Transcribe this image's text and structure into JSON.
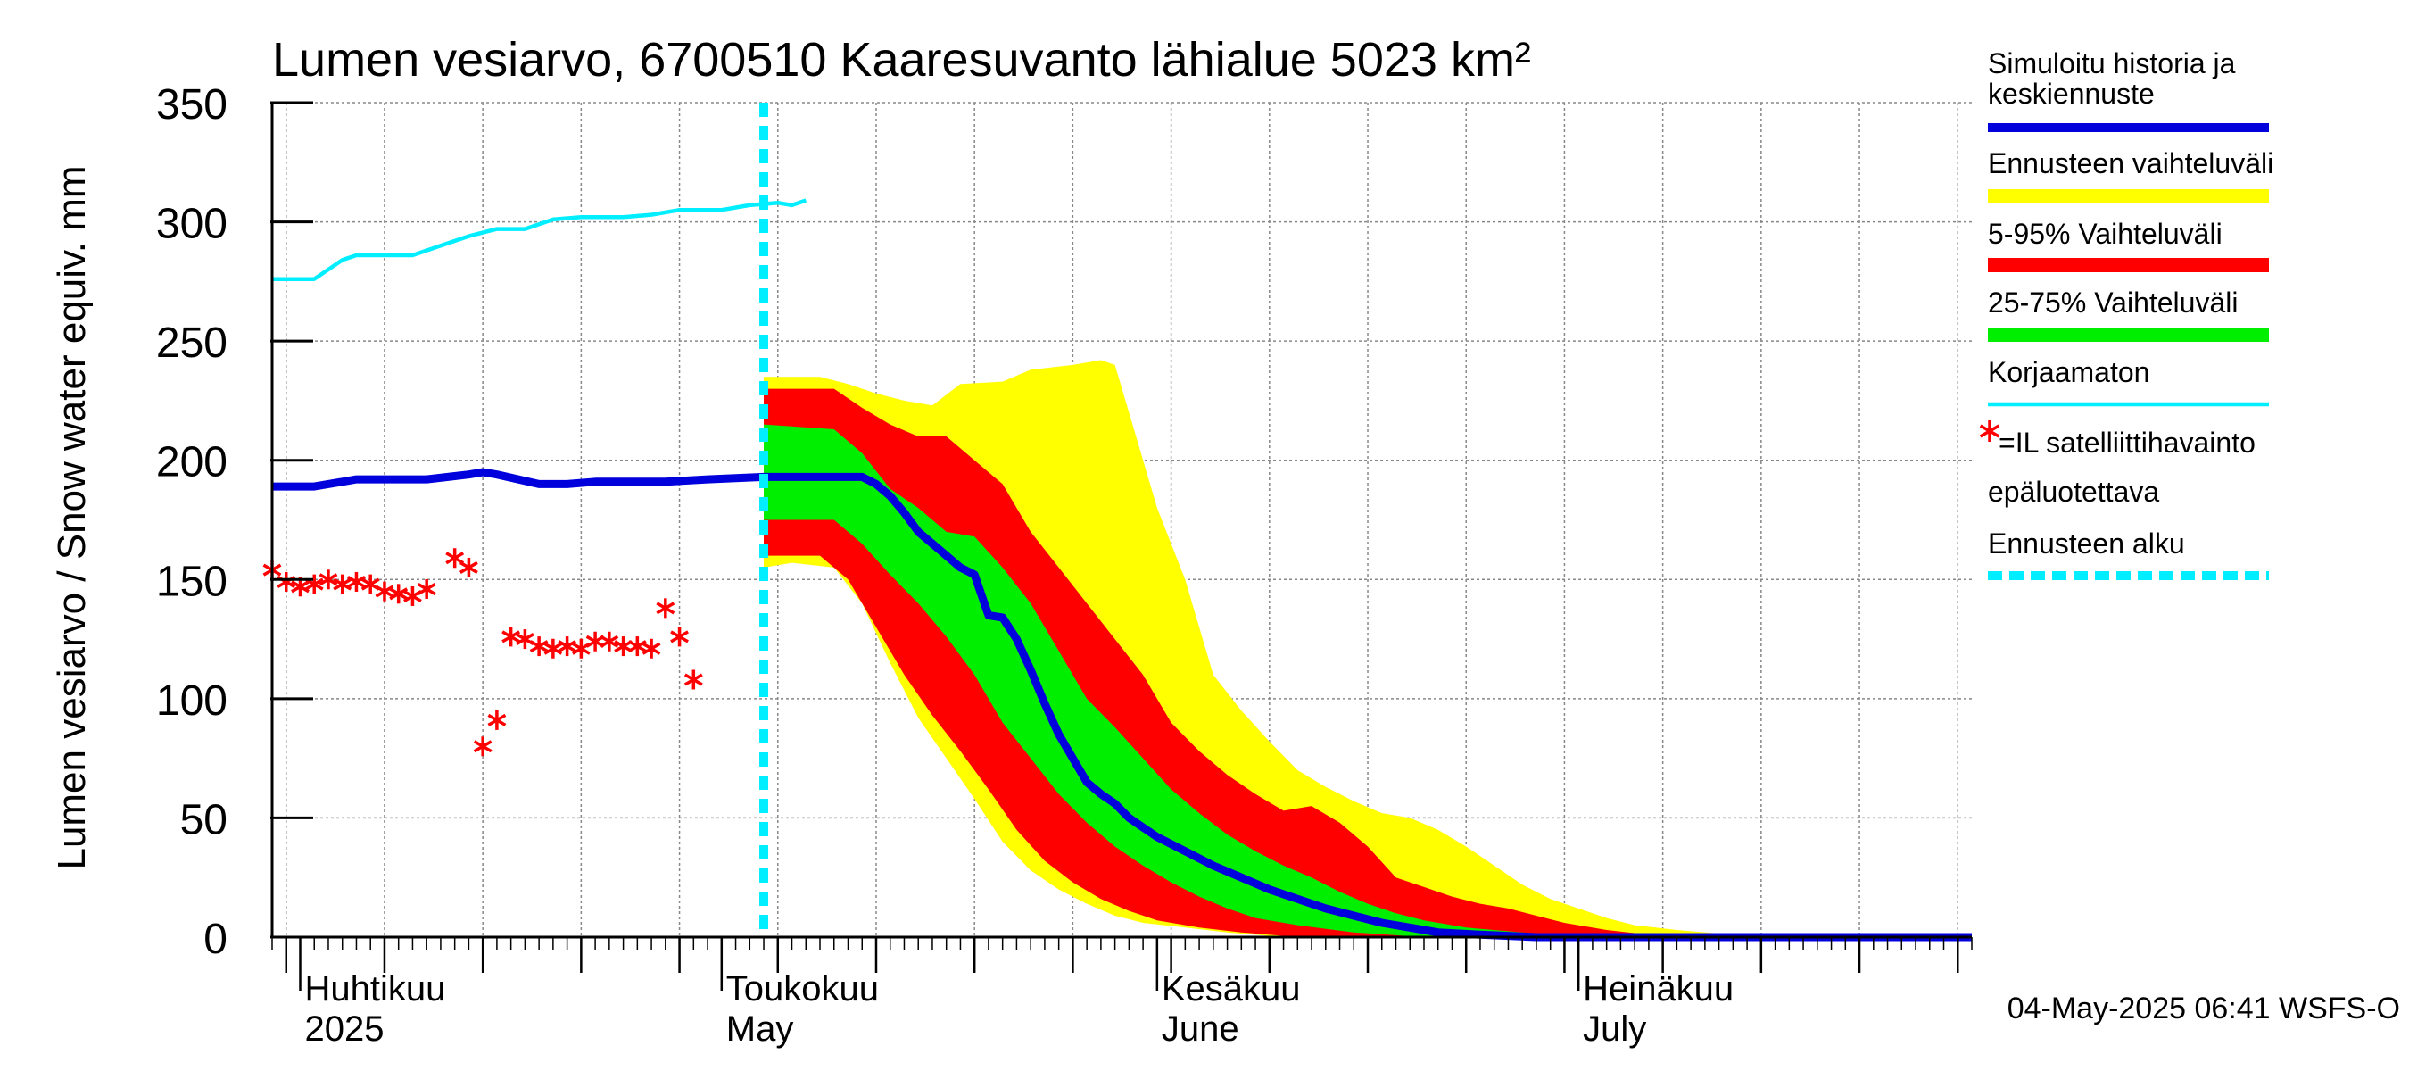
{
  "chart_data": {
    "type": "area",
    "title": "Lumen vesiarvo, 6700510 Kaaresuvanto lähialue 5023 km²",
    "ylabel": "Lumen vesiarvo / Snow water equiv.    mm",
    "ylim": [
      0,
      350
    ],
    "yticks": [
      "0",
      "50",
      "100",
      "150",
      "200",
      "250",
      "300",
      "350"
    ],
    "x_range": [
      "2025-03-30",
      "2025-07-29"
    ],
    "month_labels": [
      {
        "top": "Huhtikuu",
        "bottom": "2025",
        "date": "2025-04-01"
      },
      {
        "top": "Toukokuu",
        "bottom": "May",
        "date": "2025-05-01"
      },
      {
        "top": "Kesäkuu",
        "bottom": "June",
        "date": "2025-06-01"
      },
      {
        "top": "Heinäkuu",
        "bottom": "July",
        "date": "2025-07-01"
      }
    ],
    "forecast_start": "2025-05-04",
    "footer": "04-May-2025 06:41 WSFS-O",
    "grid": true,
    "legend_position": "right",
    "legend": [
      {
        "label": "Simuloitu historia ja keskiennuste",
        "color": "#0000dd",
        "style": "line"
      },
      {
        "label": "Ennusteen vaihteluväli",
        "color": "#ffff00",
        "style": "band"
      },
      {
        "label": "5-95% Vaihteluväli",
        "color": "#ff0000",
        "style": "band"
      },
      {
        "label": "25-75% Vaihteluväli",
        "color": "#00ee00",
        "style": "band"
      },
      {
        "label": "Korjaamaton",
        "color": "#00eeff",
        "style": "line"
      },
      {
        "label": "=IL satelliittihavainto",
        "label2": "epäluotettava",
        "color": "#ff0000",
        "style": "star"
      },
      {
        "label": "Ennusteen alku",
        "color": "#00eeff",
        "style": "dashed"
      }
    ],
    "series": [
      {
        "name": "Simuloitu historia ja keskiennuste",
        "kind": "line",
        "color": "#0000dd",
        "points": [
          [
            "2025-03-30",
            189
          ],
          [
            "2025-04-02",
            189
          ],
          [
            "2025-04-04",
            191
          ],
          [
            "2025-04-05",
            192
          ],
          [
            "2025-04-10",
            192
          ],
          [
            "2025-04-13",
            194
          ],
          [
            "2025-04-14",
            195
          ],
          [
            "2025-04-15",
            194
          ],
          [
            "2025-04-18",
            190
          ],
          [
            "2025-04-20",
            190
          ],
          [
            "2025-04-22",
            191
          ],
          [
            "2025-04-27",
            191
          ],
          [
            "2025-04-30",
            192
          ],
          [
            "2025-05-04",
            193
          ],
          [
            "2025-05-06",
            193
          ],
          [
            "2025-05-11",
            193
          ],
          [
            "2025-05-12",
            190
          ],
          [
            "2025-05-13",
            185
          ],
          [
            "2025-05-14",
            178
          ],
          [
            "2025-05-15",
            170
          ],
          [
            "2025-05-16",
            165
          ],
          [
            "2025-05-17",
            160
          ],
          [
            "2025-05-18",
            155
          ],
          [
            "2025-05-19",
            152
          ],
          [
            "2025-05-20",
            135
          ],
          [
            "2025-05-21",
            134
          ],
          [
            "2025-05-22",
            125
          ],
          [
            "2025-05-23",
            112
          ],
          [
            "2025-05-24",
            98
          ],
          [
            "2025-05-25",
            85
          ],
          [
            "2025-05-26",
            75
          ],
          [
            "2025-05-27",
            65
          ],
          [
            "2025-05-28",
            60
          ],
          [
            "2025-05-29",
            56
          ],
          [
            "2025-05-30",
            50
          ],
          [
            "2025-06-01",
            42
          ],
          [
            "2025-06-03",
            36
          ],
          [
            "2025-06-05",
            30
          ],
          [
            "2025-06-07",
            25
          ],
          [
            "2025-06-09",
            20
          ],
          [
            "2025-06-11",
            16
          ],
          [
            "2025-06-13",
            12
          ],
          [
            "2025-06-15",
            9
          ],
          [
            "2025-06-17",
            6
          ],
          [
            "2025-06-19",
            4
          ],
          [
            "2025-06-21",
            2
          ],
          [
            "2025-06-24",
            1
          ],
          [
            "2025-06-28",
            0
          ],
          [
            "2025-07-29",
            0
          ]
        ]
      },
      {
        "name": "Korjaamaton",
        "kind": "line",
        "color": "#00eeff",
        "points": [
          [
            "2025-03-30",
            276
          ],
          [
            "2025-04-02",
            276
          ],
          [
            "2025-04-04",
            284
          ],
          [
            "2025-04-05",
            286
          ],
          [
            "2025-04-07",
            286
          ],
          [
            "2025-04-09",
            286
          ],
          [
            "2025-04-11",
            290
          ],
          [
            "2025-04-13",
            294
          ],
          [
            "2025-04-15",
            297
          ],
          [
            "2025-04-17",
            297
          ],
          [
            "2025-04-19",
            301
          ],
          [
            "2025-04-21",
            302
          ],
          [
            "2025-04-24",
            302
          ],
          [
            "2025-04-26",
            303
          ],
          [
            "2025-04-28",
            305
          ],
          [
            "2025-05-01",
            305
          ],
          [
            "2025-05-03",
            307
          ],
          [
            "2025-05-05",
            308
          ],
          [
            "2025-05-06",
            307
          ],
          [
            "2025-05-07",
            309
          ]
        ]
      },
      {
        "name": "Ennusteen vaihteluväli",
        "kind": "band",
        "color": "#ffff00",
        "upper": [
          [
            "2025-05-04",
            235
          ],
          [
            "2025-05-08",
            235
          ],
          [
            "2025-05-10",
            232
          ],
          [
            "2025-05-12",
            228
          ],
          [
            "2025-05-14",
            225
          ],
          [
            "2025-05-16",
            223
          ],
          [
            "2025-05-18",
            232
          ],
          [
            "2025-05-21",
            233
          ],
          [
            "2025-05-23",
            238
          ],
          [
            "2025-05-26",
            240
          ],
          [
            "2025-05-28",
            242
          ],
          [
            "2025-05-29",
            240
          ],
          [
            "2025-05-30",
            220
          ],
          [
            "2025-06-01",
            180
          ],
          [
            "2025-06-03",
            150
          ],
          [
            "2025-06-05",
            110
          ],
          [
            "2025-06-07",
            95
          ],
          [
            "2025-06-09",
            82
          ],
          [
            "2025-06-11",
            70
          ],
          [
            "2025-06-13",
            63
          ],
          [
            "2025-06-15",
            57
          ],
          [
            "2025-06-17",
            52
          ],
          [
            "2025-06-19",
            50
          ],
          [
            "2025-06-21",
            45
          ],
          [
            "2025-06-23",
            38
          ],
          [
            "2025-06-25",
            30
          ],
          [
            "2025-06-27",
            22
          ],
          [
            "2025-06-29",
            16
          ],
          [
            "2025-07-01",
            12
          ],
          [
            "2025-07-03",
            8
          ],
          [
            "2025-07-05",
            5
          ],
          [
            "2025-07-08",
            3
          ],
          [
            "2025-07-12",
            1
          ],
          [
            "2025-07-16",
            0
          ]
        ],
        "lower": [
          [
            "2025-05-04",
            155
          ],
          [
            "2025-05-06",
            157
          ],
          [
            "2025-05-09",
            155
          ],
          [
            "2025-05-11",
            140
          ],
          [
            "2025-05-13",
            115
          ],
          [
            "2025-05-15",
            92
          ],
          [
            "2025-05-17",
            75
          ],
          [
            "2025-05-19",
            58
          ],
          [
            "2025-05-21",
            40
          ],
          [
            "2025-05-23",
            28
          ],
          [
            "2025-05-25",
            20
          ],
          [
            "2025-05-27",
            14
          ],
          [
            "2025-05-29",
            9
          ],
          [
            "2025-05-31",
            6
          ],
          [
            "2025-06-03",
            4
          ],
          [
            "2025-06-06",
            2
          ],
          [
            "2025-06-10",
            0
          ],
          [
            "2025-07-16",
            0
          ]
        ]
      },
      {
        "name": "5-95% Vaihteluväli",
        "kind": "band",
        "color": "#ff0000",
        "upper": [
          [
            "2025-05-04",
            230
          ],
          [
            "2025-05-09",
            230
          ],
          [
            "2025-05-11",
            222
          ],
          [
            "2025-05-13",
            215
          ],
          [
            "2025-05-15",
            210
          ],
          [
            "2025-05-17",
            210
          ],
          [
            "2025-05-19",
            200
          ],
          [
            "2025-05-21",
            190
          ],
          [
            "2025-05-23",
            170
          ],
          [
            "2025-05-25",
            155
          ],
          [
            "2025-05-27",
            140
          ],
          [
            "2025-05-29",
            125
          ],
          [
            "2025-05-31",
            110
          ],
          [
            "2025-06-02",
            90
          ],
          [
            "2025-06-04",
            78
          ],
          [
            "2025-06-06",
            68
          ],
          [
            "2025-06-08",
            60
          ],
          [
            "2025-06-10",
            53
          ],
          [
            "2025-06-12",
            55
          ],
          [
            "2025-06-14",
            48
          ],
          [
            "2025-06-16",
            38
          ],
          [
            "2025-06-18",
            25
          ],
          [
            "2025-06-20",
            21
          ],
          [
            "2025-06-22",
            17
          ],
          [
            "2025-06-24",
            14
          ],
          [
            "2025-06-26",
            12
          ],
          [
            "2025-06-28",
            9
          ],
          [
            "2025-06-30",
            6
          ],
          [
            "2025-07-03",
            3
          ],
          [
            "2025-07-06",
            1
          ],
          [
            "2025-07-10",
            0
          ]
        ],
        "lower": [
          [
            "2025-05-04",
            160
          ],
          [
            "2025-05-08",
            160
          ],
          [
            "2025-05-10",
            150
          ],
          [
            "2025-05-12",
            130
          ],
          [
            "2025-05-14",
            110
          ],
          [
            "2025-05-16",
            93
          ],
          [
            "2025-05-18",
            78
          ],
          [
            "2025-05-20",
            62
          ],
          [
            "2025-05-22",
            45
          ],
          [
            "2025-05-24",
            32
          ],
          [
            "2025-05-26",
            23
          ],
          [
            "2025-05-28",
            16
          ],
          [
            "2025-05-30",
            11
          ],
          [
            "2025-06-01",
            7
          ],
          [
            "2025-06-04",
            4
          ],
          [
            "2025-06-07",
            2
          ],
          [
            "2025-06-11",
            0
          ],
          [
            "2025-07-10",
            0
          ]
        ]
      },
      {
        "name": "25-75% Vaihteluväli",
        "kind": "band",
        "color": "#00ee00",
        "upper": [
          [
            "2025-05-04",
            215
          ],
          [
            "2025-05-09",
            213
          ],
          [
            "2025-05-11",
            203
          ],
          [
            "2025-05-13",
            188
          ],
          [
            "2025-05-15",
            180
          ],
          [
            "2025-05-17",
            170
          ],
          [
            "2025-05-19",
            168
          ],
          [
            "2025-05-21",
            155
          ],
          [
            "2025-05-23",
            140
          ],
          [
            "2025-05-25",
            120
          ],
          [
            "2025-05-27",
            100
          ],
          [
            "2025-05-29",
            88
          ],
          [
            "2025-05-31",
            75
          ],
          [
            "2025-06-02",
            62
          ],
          [
            "2025-06-04",
            52
          ],
          [
            "2025-06-06",
            43
          ],
          [
            "2025-06-08",
            36
          ],
          [
            "2025-06-10",
            30
          ],
          [
            "2025-06-12",
            25
          ],
          [
            "2025-06-14",
            19
          ],
          [
            "2025-06-16",
            14
          ],
          [
            "2025-06-18",
            10
          ],
          [
            "2025-06-20",
            7
          ],
          [
            "2025-06-23",
            4
          ],
          [
            "2025-06-27",
            2
          ],
          [
            "2025-07-01",
            0
          ]
        ],
        "lower": [
          [
            "2025-05-04",
            175
          ],
          [
            "2025-05-09",
            175
          ],
          [
            "2025-05-11",
            165
          ],
          [
            "2025-05-13",
            152
          ],
          [
            "2025-05-15",
            140
          ],
          [
            "2025-05-17",
            126
          ],
          [
            "2025-05-19",
            110
          ],
          [
            "2025-05-21",
            90
          ],
          [
            "2025-05-23",
            75
          ],
          [
            "2025-05-25",
            60
          ],
          [
            "2025-05-27",
            48
          ],
          [
            "2025-05-29",
            38
          ],
          [
            "2025-05-31",
            30
          ],
          [
            "2025-06-02",
            23
          ],
          [
            "2025-06-04",
            17
          ],
          [
            "2025-06-06",
            12
          ],
          [
            "2025-06-08",
            8
          ],
          [
            "2025-06-11",
            5
          ],
          [
            "2025-06-15",
            2
          ],
          [
            "2025-06-20",
            0
          ],
          [
            "2025-07-01",
            0
          ]
        ]
      },
      {
        "name": "=IL satelliittihavainto epäluotettava",
        "kind": "stars",
        "color": "#ff0000",
        "points": [
          [
            "2025-03-30",
            154
          ],
          [
            "2025-03-31",
            149
          ],
          [
            "2025-04-01",
            147
          ],
          [
            "2025-04-02",
            148
          ],
          [
            "2025-04-03",
            150
          ],
          [
            "2025-04-04",
            148
          ],
          [
            "2025-04-05",
            149
          ],
          [
            "2025-04-06",
            148
          ],
          [
            "2025-04-07",
            145
          ],
          [
            "2025-04-08",
            144
          ],
          [
            "2025-04-09",
            143
          ],
          [
            "2025-04-10",
            146
          ],
          [
            "2025-04-12",
            159
          ],
          [
            "2025-04-13",
            155
          ],
          [
            "2025-04-14",
            80
          ],
          [
            "2025-04-15",
            91
          ],
          [
            "2025-04-16",
            126
          ],
          [
            "2025-04-17",
            125
          ],
          [
            "2025-04-18",
            122
          ],
          [
            "2025-04-19",
            121
          ],
          [
            "2025-04-20",
            122
          ],
          [
            "2025-04-21",
            121
          ],
          [
            "2025-04-22",
            124
          ],
          [
            "2025-04-23",
            124
          ],
          [
            "2025-04-24",
            122
          ],
          [
            "2025-04-25",
            122
          ],
          [
            "2025-04-26",
            121
          ],
          [
            "2025-04-27",
            138
          ],
          [
            "2025-04-28",
            126
          ],
          [
            "2025-04-29",
            108
          ]
        ]
      }
    ]
  }
}
